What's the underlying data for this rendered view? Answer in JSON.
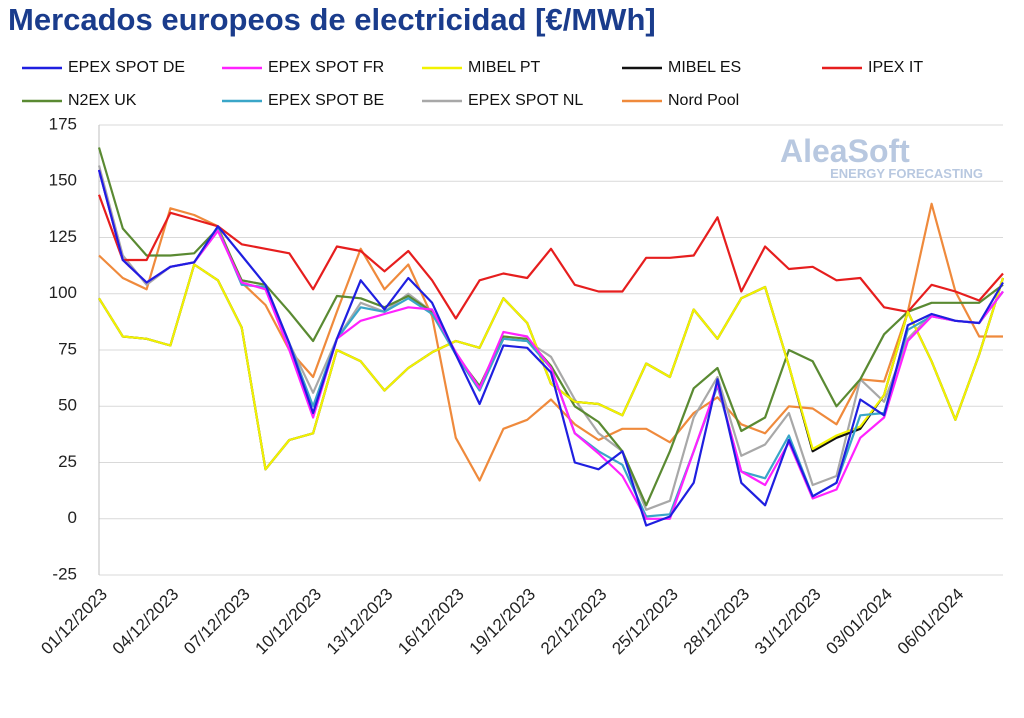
{
  "chart_data": {
    "type": "line",
    "title": "Mercados europeos de electricidad [€/MWh]",
    "watermark": {
      "name": "AleaSoft",
      "tagline": "ENERGY FORECASTING"
    },
    "categories": [
      "01/12/2023",
      null,
      null,
      "04/12/2023",
      null,
      null,
      "07/12/2023",
      null,
      null,
      "10/12/2023",
      null,
      null,
      "13/12/2023",
      null,
      null,
      "16/12/2023",
      null,
      null,
      "19/12/2023",
      null,
      null,
      "22/12/2023",
      null,
      null,
      "25/12/2023",
      null,
      null,
      "28/12/2023",
      null,
      null,
      "31/12/2023",
      null,
      null,
      "03/01/2024",
      null,
      null,
      "06/01/2024",
      null,
      null
    ],
    "ylim": [
      -25,
      175
    ],
    "yticks": [
      -25,
      0,
      25,
      50,
      75,
      100,
      125,
      150,
      175
    ],
    "grid": true,
    "series": [
      {
        "name": "EPEX SPOT DE",
        "color": "#1f1fe0",
        "values": [
          155,
          115,
          105,
          112,
          114,
          130,
          117,
          104,
          78,
          47,
          80,
          106,
          93,
          107,
          96,
          73,
          51,
          77,
          76,
          65,
          25,
          22,
          30,
          -3,
          1,
          16,
          62,
          16,
          6,
          35,
          10,
          16,
          53,
          46,
          86,
          91,
          88,
          87,
          105
        ]
      },
      {
        "name": "EPEX SPOT FR",
        "color": "#ff22ff",
        "values": [
          155,
          115,
          105,
          112,
          114,
          128,
          105,
          102,
          75,
          45,
          80,
          88,
          91,
          94,
          93,
          74,
          58,
          83,
          81,
          67,
          38,
          29,
          19,
          0,
          0,
          30,
          60,
          21,
          15,
          34,
          9,
          13,
          36,
          45,
          79,
          90,
          88,
          87,
          101
        ]
      },
      {
        "name": "MIBEL PT",
        "color": "#f2f200",
        "values": [
          98,
          81,
          80,
          77,
          113,
          106,
          85,
          22,
          35,
          38,
          75,
          70,
          57,
          67,
          74,
          79,
          76,
          98,
          87,
          60,
          52,
          51,
          46,
          69,
          63,
          93,
          80,
          98,
          103,
          68,
          31,
          37,
          41,
          55,
          92,
          70,
          44,
          73,
          107
        ]
      },
      {
        "name": "MIBEL ES",
        "color": "#111111",
        "values": [
          98,
          81,
          80,
          77,
          113,
          106,
          85,
          22,
          35,
          38,
          75,
          70,
          57,
          67,
          74,
          79,
          76,
          98,
          87,
          60,
          52,
          51,
          46,
          69,
          63,
          93,
          80,
          98,
          103,
          68,
          30,
          36,
          40,
          55,
          92,
          70,
          44,
          73,
          107
        ]
      },
      {
        "name": "IPEX IT",
        "color": "#e61e1e",
        "values": [
          144,
          115,
          115,
          136,
          133,
          130,
          122,
          120,
          118,
          102,
          121,
          119,
          110,
          119,
          106,
          89,
          106,
          109,
          107,
          120,
          104,
          101,
          101,
          116,
          116,
          117,
          134,
          101,
          121,
          111,
          112,
          106,
          107,
          94,
          92,
          104,
          101,
          97,
          109
        ]
      },
      {
        "name": "N2EX UK",
        "color": "#5a8a32",
        "values": [
          165,
          129,
          117,
          117,
          118,
          129,
          106,
          104,
          92,
          79,
          99,
          98,
          94,
          99,
          92,
          73,
          59,
          81,
          80,
          68,
          50,
          43,
          30,
          6,
          30,
          58,
          67,
          39,
          45,
          75,
          70,
          50,
          62,
          82,
          92,
          96,
          96,
          96,
          104
        ]
      },
      {
        "name": "EPEX SPOT BE",
        "color": "#3aa6c8",
        "values": [
          155,
          115,
          105,
          112,
          114,
          129,
          104,
          103,
          78,
          50,
          80,
          94,
          92,
          98,
          91,
          73,
          57,
          80,
          79,
          67,
          38,
          30,
          24,
          1,
          2,
          30,
          59,
          21,
          18,
          37,
          10,
          16,
          46,
          47,
          84,
          90,
          88,
          87,
          101
        ]
      },
      {
        "name": "EPEX SPOT NL",
        "color": "#a8a8a8",
        "values": [
          157,
          117,
          104,
          112,
          114,
          128,
          106,
          104,
          78,
          56,
          80,
          96,
          92,
          100,
          92,
          74,
          58,
          80,
          79,
          72,
          53,
          38,
          30,
          4,
          8,
          45,
          63,
          28,
          33,
          47,
          15,
          19,
          62,
          52,
          80,
          91,
          88,
          87,
          101
        ]
      },
      {
        "name": "Nord Pool",
        "color": "#ef8a3c",
        "values": [
          117,
          107,
          102,
          138,
          135,
          130,
          105,
          95,
          75,
          63,
          92,
          120,
          102,
          113,
          90,
          36,
          17,
          40,
          44,
          53,
          42,
          35,
          40,
          40,
          34,
          47,
          54,
          42,
          38,
          50,
          49,
          42,
          62,
          61,
          92,
          140,
          101,
          81,
          81
        ]
      }
    ]
  }
}
